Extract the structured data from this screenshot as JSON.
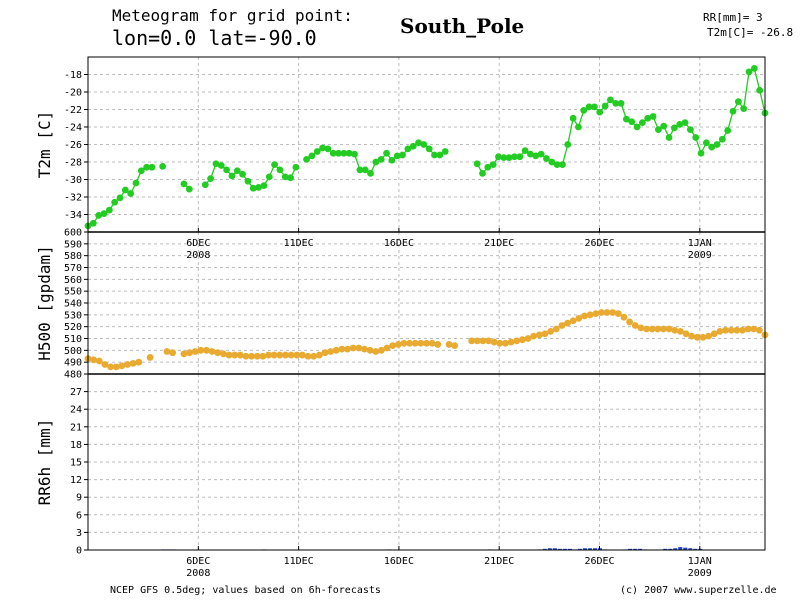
{
  "header": {
    "title_line1": "Meteogram for grid point:",
    "title_line2": "lon=0.0 lat=-90.0",
    "location": "South_Pole",
    "right_line1": "RR[mm]= 3",
    "right_line2": "T2m[C]= -26.8"
  },
  "footer": {
    "left": "NCEP GFS 0.5deg; values based on 6h-forecasts",
    "right": "(c) 2007 www.superzelle.de"
  },
  "colors": {
    "t2m": "#22cc22",
    "h500": "#e8aa30",
    "rr6h": "#2244cc",
    "grid": "#bdbdbd"
  },
  "chart_data": [
    {
      "type": "line",
      "panel": "T2m",
      "ylabel": "T2m [C]",
      "ylim": [
        -36,
        -16
      ],
      "yticks": [
        -34,
        -32,
        -30,
        -28,
        -26,
        -24,
        -22,
        -20,
        -18
      ],
      "x_unit": "hours since first forecast (6-hourly steps)",
      "x_range": [
        0,
        810
      ],
      "date_ticks": [
        {
          "x": 132,
          "label": "6DEC",
          "year": "2008"
        },
        {
          "x": 252,
          "label": "11DEC",
          "year": ""
        },
        {
          "x": 372,
          "label": "16DEC",
          "year": ""
        },
        {
          "x": 492,
          "label": "21DEC",
          "year": ""
        },
        {
          "x": 612,
          "label": "26DEC",
          "year": ""
        },
        {
          "x": 732,
          "label": "1JAN",
          "year": "2009"
        }
      ],
      "series": [
        {
          "color": "#22cc22",
          "y": [
            -35.3,
            -35.0,
            -34.1,
            -33.9,
            -33.5,
            -32.6,
            -32.1,
            -31.2,
            -31.6,
            -30.4,
            -29.0,
            -28.6,
            -28.6,
            null,
            -28.5,
            null,
            null,
            null,
            -30.5,
            -31.1,
            null,
            null,
            -30.6,
            -29.9,
            -28.2,
            -28.4,
            -28.9,
            -29.6,
            -29.0,
            -29.4,
            -30.2,
            -31.0,
            -30.9,
            -30.7,
            -29.7,
            -28.3,
            -28.9,
            -29.7,
            -29.8,
            -28.6,
            null,
            -27.7,
            -27.3,
            -26.8,
            -26.4,
            -26.5,
            -27.0,
            -27.0,
            -27.0,
            -27.0,
            -27.1,
            -28.9,
            -28.9,
            -29.3,
            -28.0,
            -27.7,
            -27.0,
            -27.8,
            -27.3,
            -27.2,
            -26.5,
            -26.2,
            -25.8,
            -26.0,
            -26.5,
            -27.2,
            -27.2,
            -26.8,
            null,
            null,
            null,
            null,
            null,
            -28.2,
            -29.3,
            -28.6,
            -28.3,
            -27.4,
            -27.5,
            -27.5,
            -27.4,
            -27.4,
            -26.7,
            -27.1,
            -27.3,
            -27.1,
            -27.6,
            -28.0,
            -28.3,
            -28.3,
            -26.0,
            -23.0,
            -24.0,
            -22.1,
            -21.7,
            -21.7,
            -22.3,
            -21.6,
            -20.9,
            -21.3,
            -21.3,
            -23.1,
            -23.4,
            -24.0,
            -23.5,
            -23.0,
            -22.8,
            -24.3,
            -23.9,
            -25.2,
            -24.1,
            -23.7,
            -23.5,
            -24.3,
            -25.2,
            -27.0,
            -25.8,
            -26.3,
            -26.0,
            -25.4,
            -24.4,
            -22.2,
            -21.1,
            -21.9,
            -17.7,
            -17.3,
            -19.8,
            -22.4
          ]
        }
      ]
    },
    {
      "type": "line",
      "panel": "H500",
      "ylabel": "H500 [gpdam]",
      "ylim": [
        480,
        600
      ],
      "yticks": [
        480,
        490,
        500,
        510,
        520,
        530,
        540,
        550,
        560,
        570,
        580,
        590,
        600
      ],
      "x_unit": "hours since first forecast (6-hourly steps)",
      "x_range": [
        0,
        810
      ],
      "series": [
        {
          "color": "#e8aa30",
          "y": [
            493,
            492,
            491,
            488,
            486,
            486,
            487,
            488,
            489,
            490,
            null,
            494,
            null,
            null,
            499,
            498,
            null,
            497,
            498,
            499,
            500,
            500,
            499,
            498,
            497,
            496,
            496,
            496,
            495,
            495,
            495,
            495,
            496,
            496,
            496,
            496,
            496,
            496,
            496,
            495,
            495,
            496,
            498,
            499,
            500,
            501,
            501,
            502,
            502,
            501,
            500,
            499,
            500,
            502,
            504,
            505,
            506,
            506,
            506,
            506,
            506,
            506,
            505,
            null,
            505,
            504,
            null,
            null,
            508,
            508,
            508,
            508,
            507,
            506,
            506,
            507,
            508,
            509,
            510,
            512,
            513,
            514,
            516,
            518,
            521,
            523,
            525,
            527,
            529,
            530,
            531,
            532,
            532,
            532,
            531,
            528,
            524,
            521,
            519,
            518,
            518,
            518,
            518,
            518,
            517,
            516,
            514,
            512,
            511,
            511,
            512,
            514,
            516,
            517,
            517,
            517,
            517,
            518,
            518,
            517,
            513
          ]
        }
      ]
    },
    {
      "type": "bar",
      "panel": "RR6h",
      "ylabel": "RR6h [mm]",
      "ylim": [
        0,
        30
      ],
      "yticks": [
        0,
        3,
        6,
        9,
        12,
        15,
        18,
        21,
        24,
        27
      ],
      "x_unit": "hours since first forecast (6-hourly steps)",
      "series": [
        {
          "color": "#2244cc",
          "x": [
            90,
            96,
            102,
            210,
            360,
            480,
            540,
            546,
            552,
            558,
            564,
            570,
            576,
            582,
            588,
            594,
            600,
            606,
            612,
            618,
            642,
            648,
            654,
            660,
            666,
            690,
            696,
            702,
            708,
            714,
            720,
            726,
            732
          ],
          "values": [
            0.1,
            0.1,
            0.1,
            0.1,
            0.1,
            0.1,
            0.1,
            0.2,
            0.3,
            0.3,
            0.2,
            0.2,
            0.2,
            0.1,
            0.2,
            0.3,
            0.3,
            0.3,
            0.3,
            0.1,
            0.1,
            0.2,
            0.2,
            0.2,
            0.1,
            0.2,
            0.2,
            0.3,
            0.5,
            0.4,
            0.3,
            0.2,
            0.2
          ]
        }
      ]
    }
  ]
}
